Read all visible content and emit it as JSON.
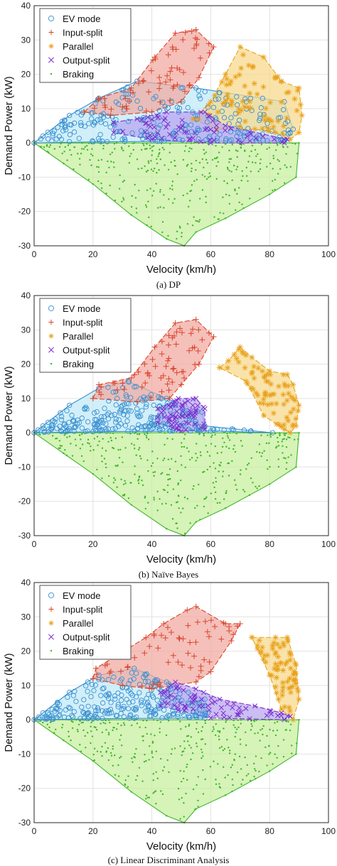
{
  "figure": {
    "xlabel": "Velocity (km/h)",
    "ylabel": "Demand Power (kW)",
    "legend_labels": [
      "EV mode",
      "Input-split",
      "Parallel",
      "Output-split",
      "Braking"
    ]
  },
  "colors": {
    "ev": "#3a8fd0",
    "ev_fill": "#bfe9f7",
    "input": "#d9452b",
    "input_fill": "#f1a8a0",
    "parallel": "#e8a21c",
    "parallel_fill": "#f8d889",
    "output": "#7b2fcf",
    "output_fill": "#b9a3f0",
    "braking": "#3fb72a",
    "braking_fill": "#c6ef9c"
  },
  "chart_data": [
    {
      "type": "scatter",
      "caption": "(a) DP",
      "xlabel": "Velocity (km/h)",
      "ylabel": "Demand Power (kW)",
      "xlim": [
        0,
        100
      ],
      "ylim": [
        -30,
        40
      ],
      "xticks": [
        0,
        20,
        40,
        60,
        80,
        100
      ],
      "yticks": [
        -30,
        -20,
        -10,
        0,
        10,
        20,
        30,
        40
      ],
      "grid": true,
      "legend_position": "top-left",
      "series": [
        {
          "name": "EV mode",
          "hull": [
            [
              0,
              0
            ],
            [
              3,
              2
            ],
            [
              12,
              8
            ],
            [
              22,
              13
            ],
            [
              35,
              18
            ],
            [
              55,
              16
            ],
            [
              85,
              12
            ],
            [
              88,
              4
            ],
            [
              85,
              0.5
            ],
            [
              60,
              0.5
            ],
            [
              20,
              0.3
            ],
            [
              0,
              0
            ]
          ]
        },
        {
          "name": "Input-split",
          "hull": [
            [
              17,
              9
            ],
            [
              22,
              13
            ],
            [
              33,
              16
            ],
            [
              41,
              25
            ],
            [
              48,
              32
            ],
            [
              55,
              33
            ],
            [
              61,
              28
            ],
            [
              56,
              19
            ],
            [
              50,
              12
            ],
            [
              40,
              9
            ],
            [
              26,
              8
            ],
            [
              17,
              9
            ]
          ]
        },
        {
          "name": "Parallel",
          "hull": [
            [
              54,
              7
            ],
            [
              60,
              12
            ],
            [
              65,
              20
            ],
            [
              70,
              28
            ],
            [
              78,
              25
            ],
            [
              84,
              18
            ],
            [
              90,
              16
            ],
            [
              91,
              8
            ],
            [
              90,
              3
            ],
            [
              87,
              1
            ],
            [
              82,
              3
            ],
            [
              75,
              4
            ],
            [
              62,
              4
            ],
            [
              54,
              7
            ]
          ]
        },
        {
          "name": "Output-split",
          "hull": [
            [
              27,
              6
            ],
            [
              35,
              7
            ],
            [
              45,
              9
            ],
            [
              58,
              9
            ],
            [
              65,
              5
            ],
            [
              86,
              1
            ],
            [
              85,
              0
            ],
            [
              60,
              0
            ],
            [
              40,
              1
            ],
            [
              27,
              3
            ],
            [
              27,
              6
            ]
          ]
        },
        {
          "name": "Braking",
          "hull": [
            [
              0,
              0
            ],
            [
              90,
              0
            ],
            [
              89,
              -10
            ],
            [
              80,
              -15
            ],
            [
              65,
              -22
            ],
            [
              55,
              -26
            ],
            [
              51,
              -30
            ],
            [
              45,
              -28
            ],
            [
              33,
              -21
            ],
            [
              20,
              -12
            ],
            [
              10,
              -6
            ],
            [
              0,
              0
            ]
          ]
        }
      ]
    },
    {
      "type": "scatter",
      "caption": "(b) Naïve Bayes",
      "xlabel": "Velocity (km/h)",
      "ylabel": "Demand Power (kW)",
      "xlim": [
        0,
        100
      ],
      "ylim": [
        -30,
        40
      ],
      "xticks": [
        0,
        20,
        40,
        60,
        80,
        100
      ],
      "yticks": [
        -30,
        -20,
        -10,
        0,
        10,
        20,
        30,
        40
      ],
      "grid": true,
      "legend_position": "top-left",
      "series": [
        {
          "name": "EV mode",
          "hull": [
            [
              0,
              0
            ],
            [
              3,
              2
            ],
            [
              12,
              8
            ],
            [
              22,
              13
            ],
            [
              32,
              15
            ],
            [
              45,
              10
            ],
            [
              57,
              6
            ],
            [
              58,
              2
            ],
            [
              81,
              0
            ],
            [
              60,
              0.5
            ],
            [
              20,
              0.3
            ],
            [
              0,
              0
            ]
          ]
        },
        {
          "name": "Input-split",
          "hull": [
            [
              20,
              10
            ],
            [
              22,
              14
            ],
            [
              33,
              16
            ],
            [
              41,
              25
            ],
            [
              48,
              32
            ],
            [
              55,
              33
            ],
            [
              61,
              28
            ],
            [
              56,
              20
            ],
            [
              50,
              14
            ],
            [
              46,
              10
            ],
            [
              35,
              9
            ],
            [
              20,
              10
            ]
          ]
        },
        {
          "name": "Parallel",
          "hull": [
            [
              63,
              19
            ],
            [
              66,
              21
            ],
            [
              70,
              25
            ],
            [
              74,
              22
            ],
            [
              80,
              18
            ],
            [
              86,
              17
            ],
            [
              88,
              14
            ],
            [
              90,
              8
            ],
            [
              89,
              2
            ],
            [
              87,
              0
            ],
            [
              85,
              1
            ],
            [
              78,
              5
            ],
            [
              72,
              15
            ],
            [
              63,
              19
            ]
          ]
        },
        {
          "name": "Output-split",
          "hull": [
            [
              42,
              7
            ],
            [
              49,
              10
            ],
            [
              55,
              10
            ],
            [
              58,
              7
            ],
            [
              58,
              1
            ],
            [
              50,
              0.5
            ],
            [
              42,
              3
            ],
            [
              42,
              7
            ]
          ]
        },
        {
          "name": "Braking",
          "hull": [
            [
              0,
              0
            ],
            [
              90,
              0
            ],
            [
              89,
              -10
            ],
            [
              80,
              -15
            ],
            [
              65,
              -22
            ],
            [
              55,
              -26
            ],
            [
              51,
              -30
            ],
            [
              45,
              -28
            ],
            [
              33,
              -21
            ],
            [
              20,
              -12
            ],
            [
              10,
              -6
            ],
            [
              0,
              0
            ]
          ]
        }
      ]
    },
    {
      "type": "scatter",
      "caption": "(c) Linear Discriminant Analysis",
      "xlabel": "Velocity (km/h)",
      "ylabel": "Demand Power (kW)",
      "xlim": [
        0,
        100
      ],
      "ylim": [
        -30,
        40
      ],
      "xticks": [
        0,
        20,
        40,
        60,
        80,
        100
      ],
      "yticks": [
        -30,
        -20,
        -10,
        0,
        10,
        20,
        30,
        40
      ],
      "grid": true,
      "legend_position": "top-left",
      "series": [
        {
          "name": "EV mode",
          "hull": [
            [
              0,
              0
            ],
            [
              3,
              2
            ],
            [
              12,
              8
            ],
            [
              22,
              13
            ],
            [
              34,
              15
            ],
            [
              45,
              11
            ],
            [
              58,
              6
            ],
            [
              59,
              2
            ],
            [
              58,
              0.5
            ],
            [
              20,
              0.3
            ],
            [
              0,
              0
            ]
          ]
        },
        {
          "name": "Input-split",
          "hull": [
            [
              20,
              12
            ],
            [
              21,
              15
            ],
            [
              38,
              24
            ],
            [
              44,
              28
            ],
            [
              52,
              32
            ],
            [
              55,
              33
            ],
            [
              65,
              28
            ],
            [
              70,
              28
            ],
            [
              67,
              23
            ],
            [
              60,
              14
            ],
            [
              55,
              11
            ],
            [
              40,
              9
            ],
            [
              30,
              10
            ],
            [
              20,
              12
            ]
          ]
        },
        {
          "name": "Parallel",
          "hull": [
            [
              74,
              24
            ],
            [
              82,
              24
            ],
            [
              86,
              24
            ],
            [
              89,
              16
            ],
            [
              90,
              6
            ],
            [
              88,
              0
            ],
            [
              84,
              3
            ],
            [
              80,
              13
            ],
            [
              74,
              24
            ]
          ]
        },
        {
          "name": "Output-split",
          "hull": [
            [
              43,
              8
            ],
            [
              48,
              11
            ],
            [
              55,
              9
            ],
            [
              63,
              6
            ],
            [
              75,
              4
            ],
            [
              84,
              2
            ],
            [
              87,
              1
            ],
            [
              85,
              0
            ],
            [
              60,
              0.5
            ],
            [
              43,
              4
            ],
            [
              43,
              8
            ]
          ]
        },
        {
          "name": "Braking",
          "hull": [
            [
              0,
              0
            ],
            [
              90,
              0
            ],
            [
              89,
              -10
            ],
            [
              80,
              -15
            ],
            [
              65,
              -22
            ],
            [
              55,
              -26
            ],
            [
              51,
              -30
            ],
            [
              45,
              -28
            ],
            [
              33,
              -21
            ],
            [
              20,
              -12
            ],
            [
              10,
              -6
            ],
            [
              0,
              0
            ]
          ]
        }
      ]
    }
  ]
}
